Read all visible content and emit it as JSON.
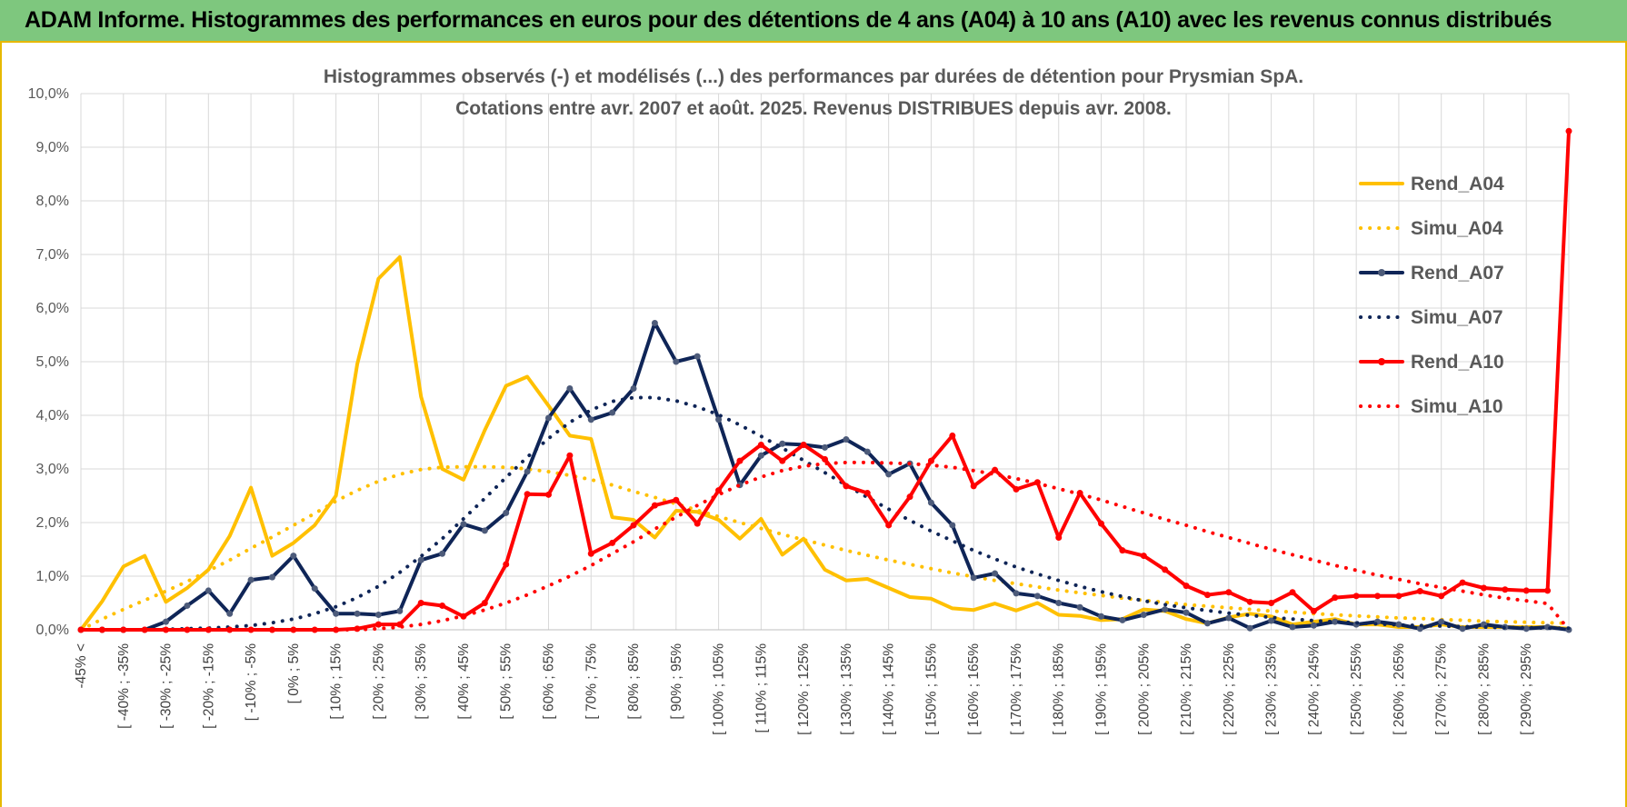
{
  "header": {
    "title": "ADAM Informe. Histogrammes des performances en euros pour des détentions de 4 ans (A04) à 10 ans (A10) avec les revenus connus distribués"
  },
  "chart_data": {
    "type": "line",
    "title_line1": "Histogrammes observés (-) et modélisés (...) des performances par durées de détention pour Prysmian SpA.",
    "title_line2": "Cotations entre avr. 2007 et août. 2025. Revenus DISTRIBUES depuis avr. 2008.",
    "ylim": [
      0,
      10
    ],
    "y_ticks": [
      "0,0%",
      "1,0%",
      "2,0%",
      "3,0%",
      "4,0%",
      "5,0%",
      "6,0%",
      "7,0%",
      "8,0%",
      "9,0%",
      "10,0%"
    ],
    "x_labels": [
      "-45% <",
      "[ -40% ; -35%",
      "[ -30% ; -25%",
      "[ -20% ; -15%",
      "[ -10% ; -5%",
      "[ 0% ; 5%",
      "[ 10% ; 15%",
      "[ 20% ; 25%",
      "[ 30% ; 35%",
      "[ 40% ; 45%",
      "[ 50% ; 55%",
      "[ 60% ; 65%",
      "[ 70% ; 75%",
      "[ 80% ; 85%",
      "[ 90% ; 95%",
      "[ 100% ; 105%",
      "[ 110% ; 115%",
      "[ 120% ; 125%",
      "[ 130% ; 135%",
      "[ 140% ; 145%",
      "[ 150% ; 155%",
      "[ 160% ; 165%",
      "[ 170% ; 175%",
      "[ 180% ; 185%",
      "[ 190% ; 195%",
      "[ 200% ; 205%",
      "[ 210% ; 215%",
      "[ 220% ; 225%",
      "[ 230% ; 235%",
      "[ 240% ; 245%",
      "[ 250% ; 255%",
      "[ 260% ; 265%",
      "[ 270% ; 275%",
      "[ 280% ; 285%",
      "[ 290% ; 295%"
    ],
    "grid": true,
    "legend_position": "right",
    "series": [
      {
        "name": "Rend_A04",
        "style": "solid",
        "color": "#ffc000",
        "values": [
          0.0,
          0.53,
          1.18,
          1.38,
          0.52,
          0.78,
          1.12,
          1.75,
          2.65,
          1.38,
          1.62,
          1.95,
          2.5,
          4.95,
          6.55,
          6.95,
          4.35,
          3.0,
          2.8,
          3.72,
          4.55,
          4.72,
          4.18,
          3.62,
          3.56,
          2.1,
          2.05,
          1.72,
          2.22,
          2.2,
          2.05,
          1.7,
          2.07,
          1.4,
          1.7,
          1.12,
          0.92,
          0.95,
          0.78,
          0.61,
          0.58,
          0.4,
          0.37,
          0.49,
          0.36,
          0.5,
          0.28,
          0.26,
          0.18,
          0.2,
          0.38,
          0.35,
          0.2,
          0.12,
          0.23,
          0.3,
          0.25,
          0.1,
          0.15,
          0.2,
          0.1,
          0.1,
          0.05,
          0.05,
          0.1,
          0.05,
          0.05,
          0.05,
          0.05,
          0.05,
          0.02
        ]
      },
      {
        "name": "Simu_A04",
        "style": "dotted",
        "color": "#ffc000",
        "values": [
          0.0,
          0.2,
          0.38,
          0.55,
          0.72,
          0.9,
          1.1,
          1.3,
          1.52,
          1.73,
          1.95,
          2.17,
          2.4,
          2.6,
          2.77,
          2.9,
          2.99,
          3.03,
          3.04,
          3.04,
          3.03,
          3.0,
          2.95,
          2.88,
          2.8,
          2.7,
          2.58,
          2.47,
          2.35,
          2.23,
          2.11,
          2.0,
          1.89,
          1.78,
          1.68,
          1.58,
          1.48,
          1.39,
          1.3,
          1.22,
          1.14,
          1.06,
          0.99,
          0.92,
          0.86,
          0.8,
          0.74,
          0.69,
          0.64,
          0.59,
          0.55,
          0.51,
          0.47,
          0.44,
          0.41,
          0.38,
          0.35,
          0.33,
          0.3,
          0.28,
          0.26,
          0.24,
          0.22,
          0.21,
          0.19,
          0.18,
          0.16,
          0.15,
          0.14,
          0.13,
          0.12
        ]
      },
      {
        "name": "Rend_A07",
        "style": "solid",
        "color": "#0f2557",
        "values": [
          0.0,
          0.0,
          0.0,
          0.0,
          0.15,
          0.45,
          0.73,
          0.3,
          0.93,
          0.98,
          1.38,
          0.77,
          0.3,
          0.3,
          0.28,
          0.35,
          1.3,
          1.42,
          1.97,
          1.85,
          2.18,
          2.95,
          3.95,
          4.5,
          3.92,
          4.05,
          4.5,
          5.72,
          5.0,
          5.1,
          3.92,
          2.7,
          3.25,
          3.47,
          3.45,
          3.4,
          3.55,
          3.32,
          2.9,
          3.1,
          2.37,
          1.95,
          0.97,
          1.05,
          0.68,
          0.63,
          0.5,
          0.42,
          0.25,
          0.18,
          0.28,
          0.38,
          0.32,
          0.12,
          0.22,
          0.03,
          0.17,
          0.05,
          0.08,
          0.15,
          0.1,
          0.15,
          0.1,
          0.02,
          0.15,
          0.02,
          0.1,
          0.05,
          0.02,
          0.05,
          0.0
        ]
      },
      {
        "name": "Simu_A07",
        "style": "dotted",
        "color": "#0f2557",
        "values": [
          0.0,
          0.0,
          0.0,
          0.0,
          0.01,
          0.02,
          0.03,
          0.05,
          0.08,
          0.13,
          0.2,
          0.3,
          0.43,
          0.6,
          0.81,
          1.07,
          1.37,
          1.7,
          2.07,
          2.45,
          2.84,
          3.22,
          3.57,
          3.87,
          4.1,
          4.26,
          4.33,
          4.33,
          4.27,
          4.16,
          4.01,
          3.82,
          3.61,
          3.39,
          3.16,
          2.93,
          2.7,
          2.47,
          2.25,
          2.04,
          1.84,
          1.66,
          1.48,
          1.32,
          1.17,
          1.04,
          0.92,
          0.81,
          0.71,
          0.62,
          0.54,
          0.47,
          0.41,
          0.36,
          0.31,
          0.27,
          0.23,
          0.2,
          0.17,
          0.15,
          0.13,
          0.11,
          0.09,
          0.08,
          0.07,
          0.06,
          0.05,
          0.04,
          0.04,
          0.03,
          0.03
        ]
      },
      {
        "name": "Rend_A10",
        "style": "solid",
        "color": "#ff0000",
        "values": [
          0.0,
          0.0,
          0.0,
          0.0,
          0.0,
          0.0,
          0.0,
          0.0,
          0.0,
          0.0,
          0.0,
          0.0,
          0.0,
          0.02,
          0.1,
          0.1,
          0.5,
          0.45,
          0.25,
          0.5,
          1.22,
          2.53,
          2.52,
          3.25,
          1.42,
          1.62,
          1.95,
          2.32,
          2.42,
          1.98,
          2.6,
          3.15,
          3.45,
          3.15,
          3.45,
          3.18,
          2.68,
          2.55,
          1.95,
          2.48,
          3.15,
          3.62,
          2.68,
          2.98,
          2.62,
          2.75,
          1.72,
          2.55,
          1.98,
          1.48,
          1.38,
          1.12,
          0.82,
          0.65,
          0.7,
          0.52,
          0.5,
          0.7,
          0.35,
          0.6,
          0.63,
          0.63,
          0.63,
          0.72,
          0.63,
          0.88,
          0.78,
          0.75,
          0.73,
          0.73,
          9.3
        ]
      },
      {
        "name": "Simu_A10",
        "style": "dotted",
        "color": "#ff0000",
        "values": [
          0.0,
          0.0,
          0.0,
          0.0,
          0.0,
          0.0,
          0.0,
          0.0,
          0.0,
          0.0,
          0.0,
          0.0,
          0.0,
          0.0,
          0.02,
          0.05,
          0.1,
          0.17,
          0.26,
          0.37,
          0.5,
          0.65,
          0.82,
          1.0,
          1.2,
          1.42,
          1.64,
          1.88,
          2.1,
          2.32,
          2.52,
          2.7,
          2.85,
          2.97,
          3.05,
          3.1,
          3.12,
          3.12,
          3.11,
          3.1,
          3.07,
          3.03,
          2.97,
          2.9,
          2.82,
          2.73,
          2.63,
          2.53,
          2.42,
          2.3,
          2.18,
          2.06,
          1.95,
          1.83,
          1.72,
          1.61,
          1.5,
          1.4,
          1.3,
          1.2,
          1.11,
          1.02,
          0.94,
          0.86,
          0.79,
          0.72,
          0.65,
          0.59,
          0.54,
          0.49,
          0.0
        ]
      }
    ]
  }
}
